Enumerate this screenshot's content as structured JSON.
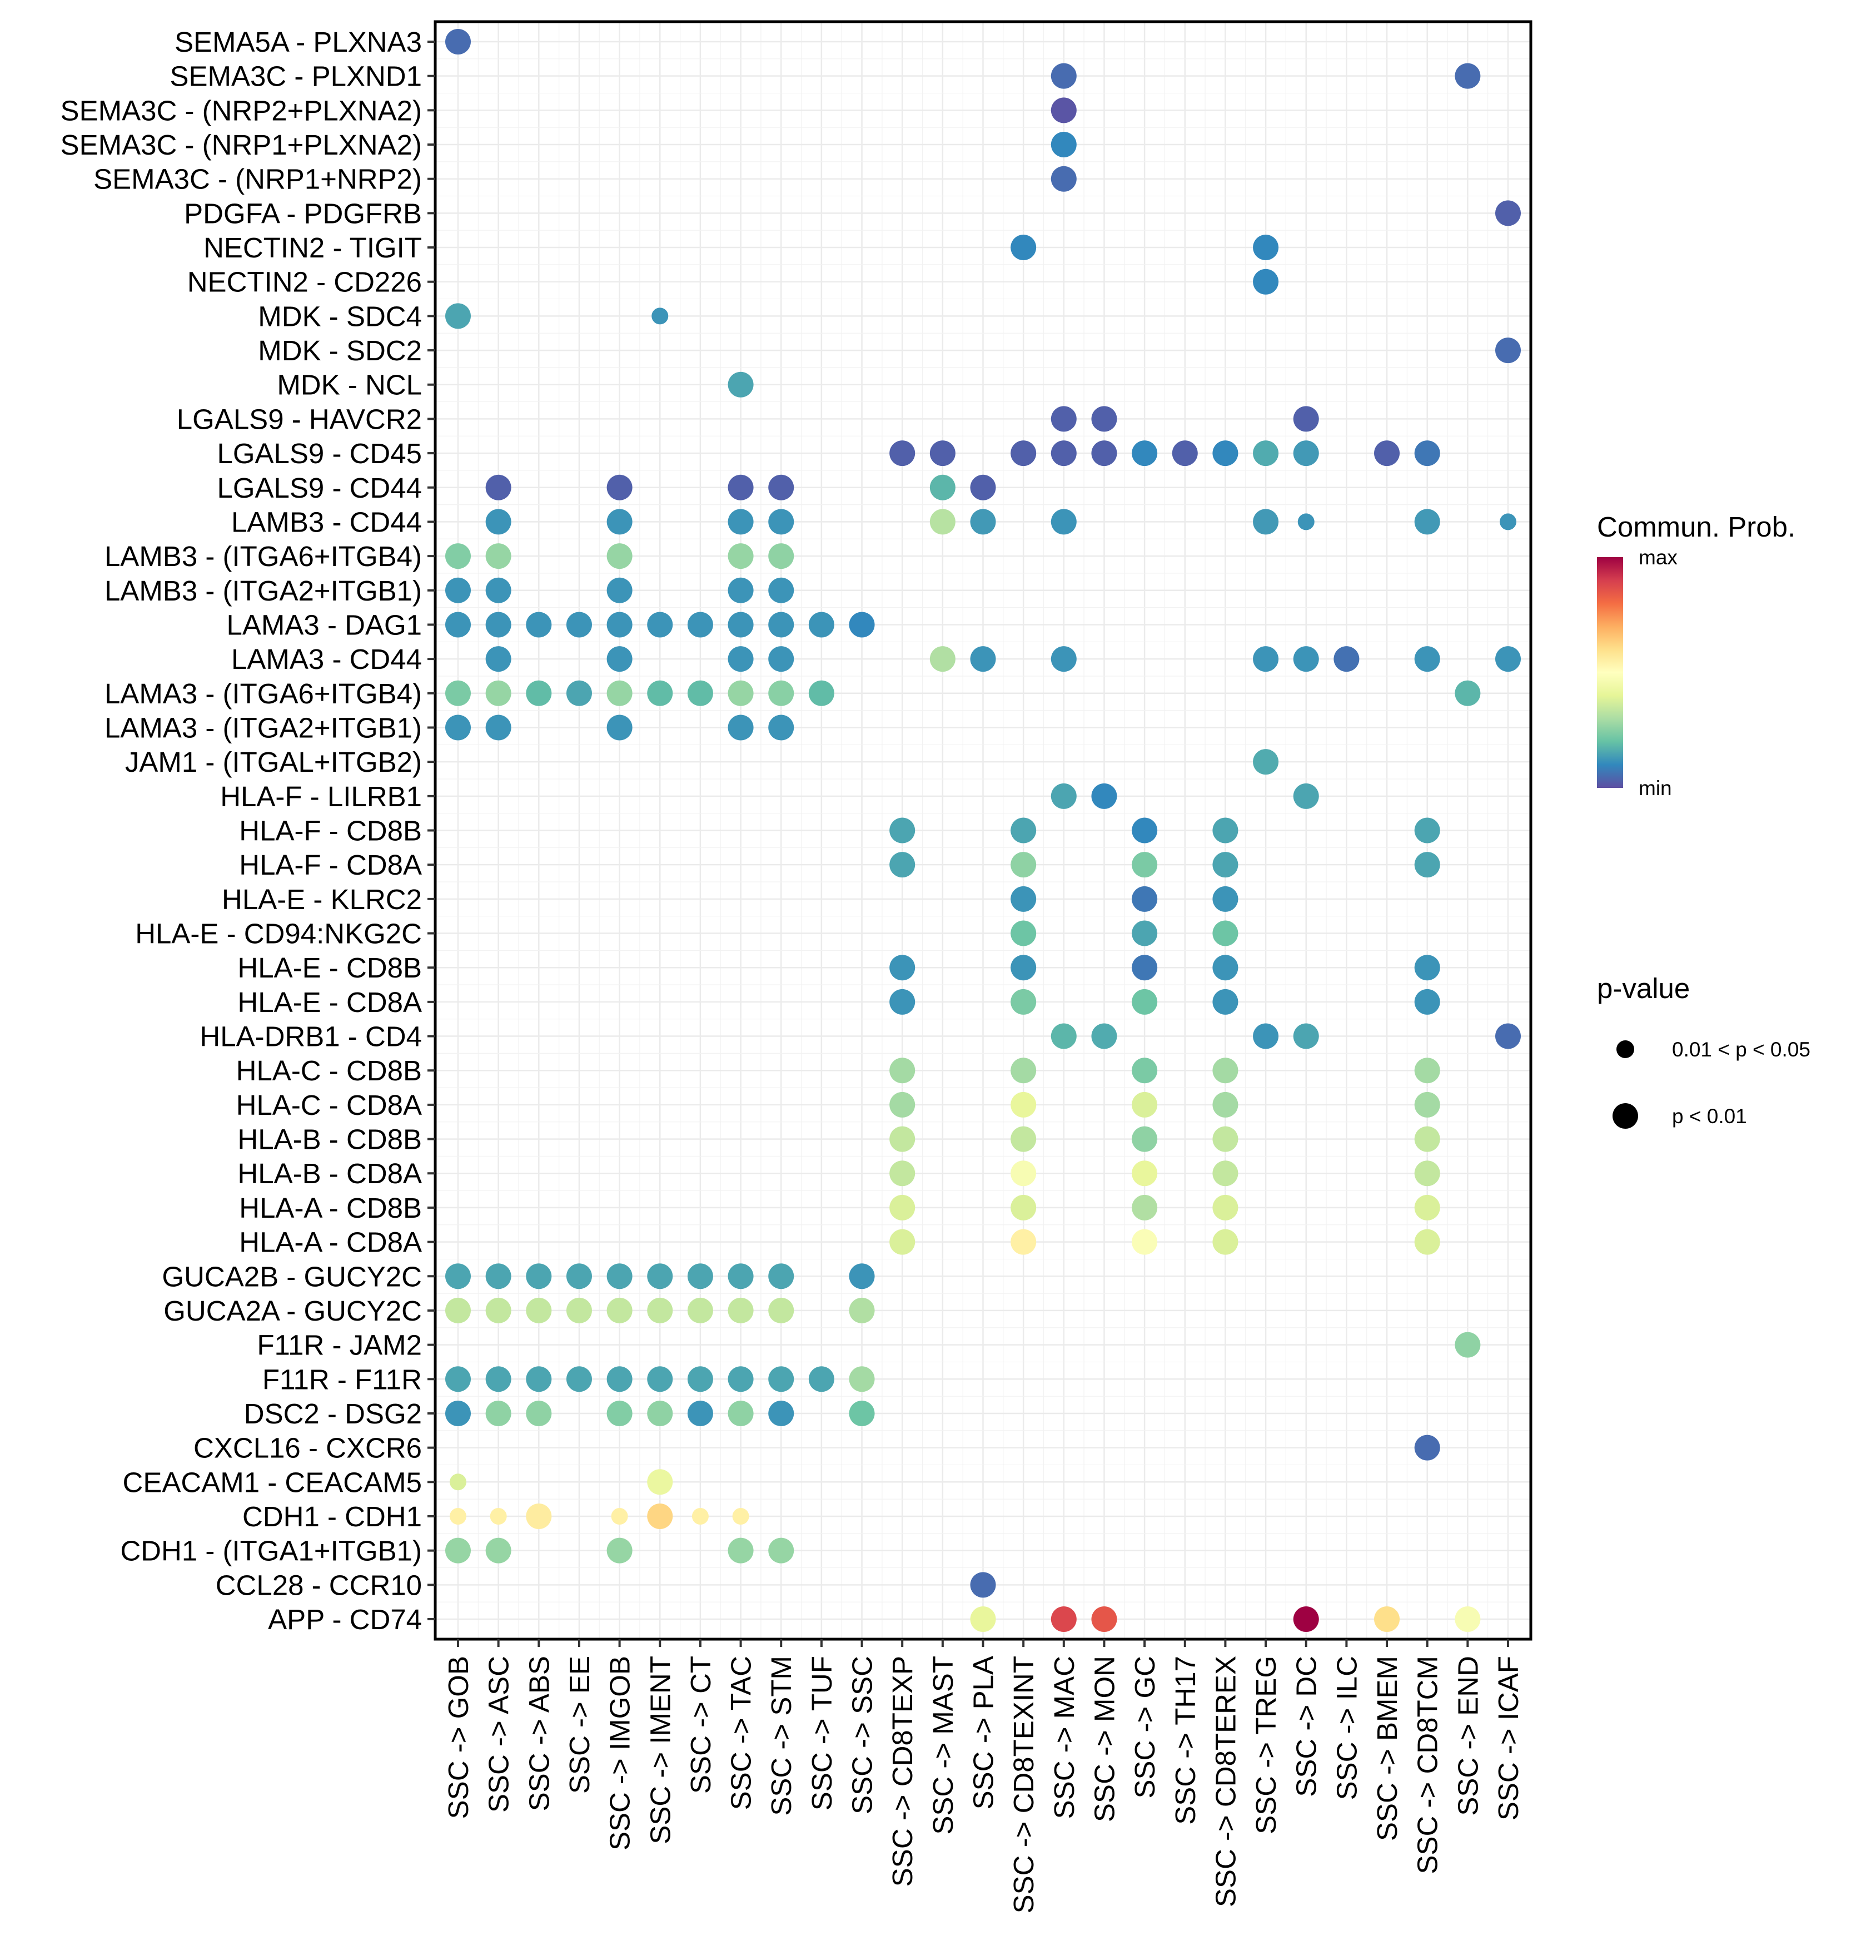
{
  "chart_data": {
    "type": "scatter",
    "subtype": "dot-plot",
    "title": "",
    "xlabel": "",
    "ylabel": "",
    "grid": true,
    "x_categories": [
      "SSC -> GOB",
      "SSC -> ASC",
      "SSC -> ABS",
      "SSC -> EE",
      "SSC -> IMGOB",
      "SSC -> IMENT",
      "SSC -> CT",
      "SSC -> TAC",
      "SSC -> STM",
      "SSC -> TUF",
      "SSC -> SSC",
      "SSC -> CD8TEXP",
      "SSC -> MAST",
      "SSC -> PLA",
      "SSC -> CD8TEXINT",
      "SSC -> MAC",
      "SSC -> MON",
      "SSC -> GC",
      "SSC -> TH17",
      "SSC -> CD8TEREX",
      "SSC -> TREG",
      "SSC -> DC",
      "SSC -> ILC",
      "SSC -> BMEM",
      "SSC -> CD8TCM",
      "SSC -> END",
      "SSC -> ICAF"
    ],
    "y_categories": [
      "SEMA5A - PLXNA3",
      "SEMA3C - PLXND1",
      "SEMA3C - (NRP2+PLXNA2)",
      "SEMA3C - (NRP1+PLXNA2)",
      "SEMA3C - (NRP1+NRP2)",
      "PDGFA - PDGFRB",
      "NECTIN2 - TIGIT",
      "NECTIN2 - CD226",
      "MDK - SDC4",
      "MDK - SDC2",
      "MDK - NCL",
      "LGALS9 - HAVCR2",
      "LGALS9 - CD45",
      "LGALS9 - CD44",
      "LAMB3 - CD44",
      "LAMB3 - (ITGA6+ITGB4)",
      "LAMB3 - (ITGA2+ITGB1)",
      "LAMA3 - DAG1",
      "LAMA3 - CD44",
      "LAMA3 - (ITGA6+ITGB4)",
      "LAMA3 - (ITGA2+ITGB1)",
      "JAM1 - (ITGAL+ITGB2)",
      "HLA-F - LILRB1",
      "HLA-F - CD8B",
      "HLA-F - CD8A",
      "HLA-E - KLRC2",
      "HLA-E - CD94:NKG2C",
      "HLA-E - CD8B",
      "HLA-E - CD8A",
      "HLA-DRB1 - CD4",
      "HLA-C - CD8B",
      "HLA-C - CD8A",
      "HLA-B - CD8B",
      "HLA-B - CD8A",
      "HLA-A - CD8B",
      "HLA-A - CD8A",
      "GUCA2B - GUCY2C",
      "GUCA2A - GUCY2C",
      "F11R - JAM2",
      "F11R - F11R",
      "DSC2 - DSG2",
      "CXCL16 - CXCR6",
      "CEACAM1 - CEACAM5",
      "CDH1 - CDH1",
      "CDH1 - (ITGA1+ITGB1)",
      "CCL28 - CCR10",
      "APP - CD74"
    ],
    "color_scale": {
      "title": "Commun. Prob.",
      "palette": "Spectral",
      "stops": [
        "#5E4FA2",
        "#3288BD",
        "#66C2A5",
        "#ABDDA4",
        "#E6F598",
        "#FFFFBF",
        "#FEE08B",
        "#FDAE61",
        "#F46D43",
        "#D53E4F",
        "#9E0142"
      ],
      "min_label": "min",
      "max_label": "max",
      "range": [
        0,
        1
      ]
    },
    "size_legend": {
      "title": "p-value",
      "entries": [
        {
          "label": "0.01 < p < 0.05",
          "level": 0
        },
        {
          "label": "p < 0.01",
          "level": 1
        }
      ]
    },
    "points_format": [
      "y_index",
      "x_index",
      "commun_prob_scaled",
      "pvalue_level"
    ],
    "points": [
      [
        0,
        0,
        0.05,
        1
      ],
      [
        1,
        15,
        0.05,
        1
      ],
      [
        1,
        25,
        0.05,
        1
      ],
      [
        2,
        15,
        0.01,
        1
      ],
      [
        3,
        15,
        0.1,
        1
      ],
      [
        4,
        15,
        0.05,
        1
      ],
      [
        5,
        26,
        0.03,
        1
      ],
      [
        6,
        14,
        0.1,
        1
      ],
      [
        6,
        20,
        0.1,
        1
      ],
      [
        7,
        20,
        0.1,
        1
      ],
      [
        8,
        0,
        0.15,
        1
      ],
      [
        8,
        5,
        0.12,
        0
      ],
      [
        9,
        26,
        0.05,
        1
      ],
      [
        10,
        7,
        0.15,
        1
      ],
      [
        11,
        15,
        0.03,
        1
      ],
      [
        11,
        16,
        0.03,
        1
      ],
      [
        11,
        21,
        0.03,
        1
      ],
      [
        12,
        11,
        0.03,
        1
      ],
      [
        12,
        12,
        0.03,
        1
      ],
      [
        12,
        14,
        0.03,
        1
      ],
      [
        12,
        15,
        0.03,
        1
      ],
      [
        12,
        16,
        0.03,
        1
      ],
      [
        12,
        17,
        0.1,
        1
      ],
      [
        12,
        18,
        0.03,
        1
      ],
      [
        12,
        19,
        0.1,
        1
      ],
      [
        12,
        20,
        0.16,
        1
      ],
      [
        12,
        21,
        0.13,
        1
      ],
      [
        12,
        23,
        0.03,
        1
      ],
      [
        12,
        24,
        0.07,
        1
      ],
      [
        13,
        1,
        0.03,
        1
      ],
      [
        13,
        4,
        0.03,
        1
      ],
      [
        13,
        7,
        0.03,
        1
      ],
      [
        13,
        8,
        0.03,
        1
      ],
      [
        13,
        12,
        0.18,
        1
      ],
      [
        13,
        13,
        0.03,
        1
      ],
      [
        14,
        1,
        0.12,
        1
      ],
      [
        14,
        4,
        0.12,
        1
      ],
      [
        14,
        7,
        0.12,
        1
      ],
      [
        14,
        8,
        0.12,
        1
      ],
      [
        14,
        12,
        0.32,
        1
      ],
      [
        14,
        13,
        0.13,
        1
      ],
      [
        14,
        15,
        0.12,
        1
      ],
      [
        14,
        20,
        0.13,
        1
      ],
      [
        14,
        21,
        0.12,
        0
      ],
      [
        14,
        24,
        0.13,
        1
      ],
      [
        14,
        26,
        0.12,
        0
      ],
      [
        15,
        0,
        0.24,
        1
      ],
      [
        15,
        1,
        0.27,
        1
      ],
      [
        15,
        4,
        0.27,
        1
      ],
      [
        15,
        7,
        0.27,
        1
      ],
      [
        15,
        8,
        0.26,
        1
      ],
      [
        16,
        0,
        0.12,
        1
      ],
      [
        16,
        1,
        0.12,
        1
      ],
      [
        16,
        4,
        0.12,
        1
      ],
      [
        16,
        7,
        0.12,
        1
      ],
      [
        16,
        8,
        0.12,
        1
      ],
      [
        17,
        0,
        0.12,
        1
      ],
      [
        17,
        1,
        0.12,
        1
      ],
      [
        17,
        2,
        0.12,
        1
      ],
      [
        17,
        3,
        0.12,
        1
      ],
      [
        17,
        4,
        0.12,
        1
      ],
      [
        17,
        5,
        0.12,
        1
      ],
      [
        17,
        6,
        0.12,
        1
      ],
      [
        17,
        7,
        0.12,
        1
      ],
      [
        17,
        8,
        0.12,
        1
      ],
      [
        17,
        9,
        0.12,
        1
      ],
      [
        17,
        10,
        0.1,
        1
      ],
      [
        18,
        1,
        0.12,
        1
      ],
      [
        18,
        4,
        0.12,
        1
      ],
      [
        18,
        7,
        0.12,
        1
      ],
      [
        18,
        8,
        0.12,
        1
      ],
      [
        18,
        12,
        0.31,
        1
      ],
      [
        18,
        13,
        0.12,
        1
      ],
      [
        18,
        15,
        0.12,
        1
      ],
      [
        18,
        20,
        0.12,
        1
      ],
      [
        18,
        21,
        0.12,
        1
      ],
      [
        18,
        22,
        0.06,
        1
      ],
      [
        18,
        24,
        0.12,
        1
      ],
      [
        18,
        26,
        0.12,
        1
      ],
      [
        19,
        0,
        0.23,
        1
      ],
      [
        19,
        1,
        0.27,
        1
      ],
      [
        19,
        2,
        0.19,
        1
      ],
      [
        19,
        3,
        0.15,
        1
      ],
      [
        19,
        4,
        0.27,
        1
      ],
      [
        19,
        5,
        0.19,
        1
      ],
      [
        19,
        6,
        0.19,
        1
      ],
      [
        19,
        7,
        0.27,
        1
      ],
      [
        19,
        8,
        0.25,
        1
      ],
      [
        19,
        9,
        0.19,
        1
      ],
      [
        19,
        25,
        0.18,
        1
      ],
      [
        20,
        0,
        0.12,
        1
      ],
      [
        20,
        1,
        0.12,
        1
      ],
      [
        20,
        4,
        0.12,
        1
      ],
      [
        20,
        7,
        0.12,
        1
      ],
      [
        20,
        8,
        0.12,
        1
      ],
      [
        21,
        20,
        0.16,
        1
      ],
      [
        22,
        15,
        0.15,
        1
      ],
      [
        22,
        16,
        0.1,
        1
      ],
      [
        22,
        21,
        0.15,
        1
      ],
      [
        23,
        11,
        0.15,
        1
      ],
      [
        23,
        14,
        0.15,
        1
      ],
      [
        23,
        17,
        0.1,
        1
      ],
      [
        23,
        19,
        0.15,
        1
      ],
      [
        23,
        24,
        0.15,
        1
      ],
      [
        24,
        11,
        0.15,
        1
      ],
      [
        24,
        14,
        0.26,
        1
      ],
      [
        24,
        17,
        0.23,
        1
      ],
      [
        24,
        19,
        0.15,
        1
      ],
      [
        24,
        24,
        0.15,
        1
      ],
      [
        25,
        14,
        0.12,
        1
      ],
      [
        25,
        17,
        0.07,
        1
      ],
      [
        25,
        19,
        0.12,
        1
      ],
      [
        26,
        14,
        0.21,
        1
      ],
      [
        26,
        17,
        0.15,
        1
      ],
      [
        26,
        19,
        0.21,
        1
      ],
      [
        27,
        11,
        0.12,
        1
      ],
      [
        27,
        14,
        0.12,
        1
      ],
      [
        27,
        17,
        0.07,
        1
      ],
      [
        27,
        19,
        0.12,
        1
      ],
      [
        27,
        24,
        0.12,
        1
      ],
      [
        28,
        11,
        0.12,
        1
      ],
      [
        28,
        14,
        0.23,
        1
      ],
      [
        28,
        17,
        0.21,
        1
      ],
      [
        28,
        19,
        0.12,
        1
      ],
      [
        28,
        24,
        0.12,
        1
      ],
      [
        29,
        15,
        0.18,
        1
      ],
      [
        29,
        16,
        0.16,
        1
      ],
      [
        29,
        20,
        0.12,
        1
      ],
      [
        29,
        21,
        0.15,
        1
      ],
      [
        29,
        26,
        0.05,
        1
      ],
      [
        30,
        11,
        0.29,
        1
      ],
      [
        30,
        14,
        0.29,
        1
      ],
      [
        30,
        17,
        0.23,
        1
      ],
      [
        30,
        19,
        0.29,
        1
      ],
      [
        30,
        24,
        0.29,
        1
      ],
      [
        31,
        11,
        0.29,
        1
      ],
      [
        31,
        14,
        0.41,
        1
      ],
      [
        31,
        17,
        0.38,
        1
      ],
      [
        31,
        19,
        0.29,
        1
      ],
      [
        31,
        24,
        0.29,
        1
      ],
      [
        32,
        11,
        0.34,
        1
      ],
      [
        32,
        14,
        0.34,
        1
      ],
      [
        32,
        17,
        0.26,
        1
      ],
      [
        32,
        19,
        0.34,
        1
      ],
      [
        32,
        24,
        0.34,
        1
      ],
      [
        33,
        11,
        0.34,
        1
      ],
      [
        33,
        14,
        0.47,
        1
      ],
      [
        33,
        17,
        0.41,
        1
      ],
      [
        33,
        19,
        0.34,
        1
      ],
      [
        33,
        24,
        0.34,
        1
      ],
      [
        34,
        11,
        0.38,
        1
      ],
      [
        34,
        14,
        0.38,
        1
      ],
      [
        34,
        17,
        0.31,
        1
      ],
      [
        34,
        19,
        0.38,
        1
      ],
      [
        34,
        24,
        0.38,
        1
      ],
      [
        35,
        11,
        0.38,
        1
      ],
      [
        35,
        14,
        0.55,
        1
      ],
      [
        35,
        17,
        0.48,
        1
      ],
      [
        35,
        19,
        0.38,
        1
      ],
      [
        35,
        24,
        0.38,
        1
      ],
      [
        36,
        0,
        0.15,
        1
      ],
      [
        36,
        1,
        0.15,
        1
      ],
      [
        36,
        2,
        0.15,
        1
      ],
      [
        36,
        3,
        0.15,
        1
      ],
      [
        36,
        4,
        0.15,
        1
      ],
      [
        36,
        5,
        0.15,
        1
      ],
      [
        36,
        6,
        0.15,
        1
      ],
      [
        36,
        7,
        0.15,
        1
      ],
      [
        36,
        8,
        0.15,
        1
      ],
      [
        36,
        10,
        0.12,
        1
      ],
      [
        37,
        0,
        0.34,
        1
      ],
      [
        37,
        1,
        0.34,
        1
      ],
      [
        37,
        2,
        0.34,
        1
      ],
      [
        37,
        3,
        0.34,
        1
      ],
      [
        37,
        4,
        0.34,
        1
      ],
      [
        37,
        5,
        0.34,
        1
      ],
      [
        37,
        6,
        0.34,
        1
      ],
      [
        37,
        7,
        0.34,
        1
      ],
      [
        37,
        8,
        0.34,
        1
      ],
      [
        37,
        10,
        0.31,
        1
      ],
      [
        38,
        25,
        0.26,
        1
      ],
      [
        39,
        0,
        0.15,
        1
      ],
      [
        39,
        1,
        0.15,
        1
      ],
      [
        39,
        2,
        0.15,
        1
      ],
      [
        39,
        3,
        0.15,
        1
      ],
      [
        39,
        4,
        0.15,
        1
      ],
      [
        39,
        5,
        0.15,
        1
      ],
      [
        39,
        6,
        0.15,
        1
      ],
      [
        39,
        7,
        0.15,
        1
      ],
      [
        39,
        8,
        0.15,
        1
      ],
      [
        39,
        9,
        0.15,
        1
      ],
      [
        39,
        10,
        0.29,
        1
      ],
      [
        40,
        0,
        0.12,
        1
      ],
      [
        40,
        1,
        0.26,
        1
      ],
      [
        40,
        2,
        0.26,
        1
      ],
      [
        40,
        4,
        0.24,
        1
      ],
      [
        40,
        5,
        0.26,
        1
      ],
      [
        40,
        6,
        0.12,
        1
      ],
      [
        40,
        7,
        0.26,
        1
      ],
      [
        40,
        8,
        0.12,
        1
      ],
      [
        40,
        10,
        0.21,
        1
      ],
      [
        41,
        24,
        0.05,
        1
      ],
      [
        42,
        0,
        0.38,
        0
      ],
      [
        42,
        5,
        0.42,
        1
      ],
      [
        43,
        0,
        0.55,
        0
      ],
      [
        43,
        1,
        0.55,
        0
      ],
      [
        43,
        2,
        0.56,
        1
      ],
      [
        43,
        4,
        0.55,
        0
      ],
      [
        43,
        5,
        0.62,
        1
      ],
      [
        43,
        6,
        0.55,
        0
      ],
      [
        43,
        7,
        0.55,
        0
      ],
      [
        44,
        0,
        0.27,
        1
      ],
      [
        44,
        1,
        0.27,
        1
      ],
      [
        44,
        4,
        0.27,
        1
      ],
      [
        44,
        7,
        0.27,
        1
      ],
      [
        44,
        8,
        0.27,
        1
      ],
      [
        45,
        13,
        0.05,
        1
      ],
      [
        46,
        13,
        0.41,
        1
      ],
      [
        46,
        15,
        0.88,
        1
      ],
      [
        46,
        16,
        0.85,
        1
      ],
      [
        46,
        21,
        1.0,
        1
      ],
      [
        46,
        23,
        0.6,
        1
      ],
      [
        46,
        25,
        0.47,
        1
      ]
    ]
  }
}
